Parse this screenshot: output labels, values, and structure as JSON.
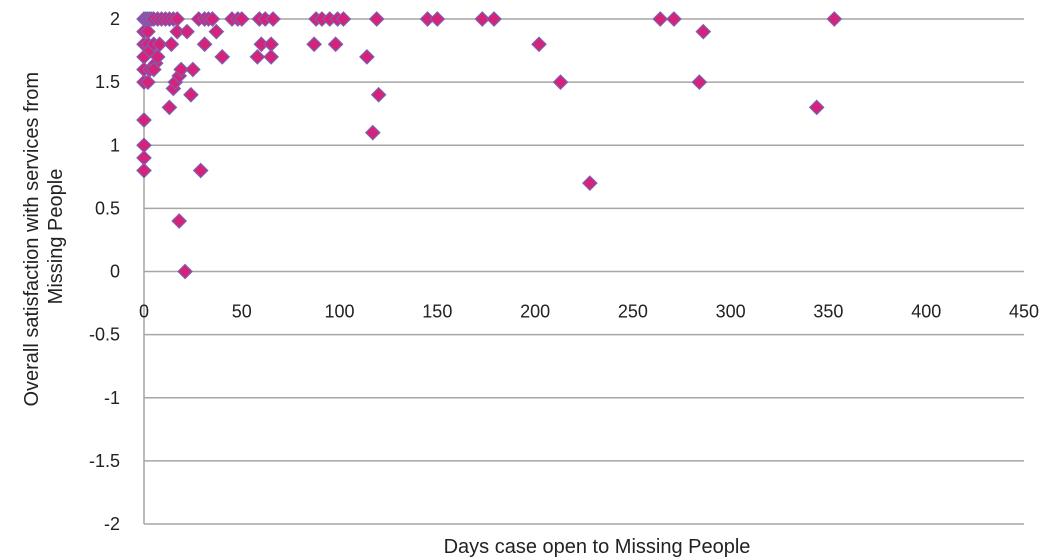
{
  "chart_data": {
    "type": "scatter",
    "title": "",
    "xlabel": "Days case open to Missing People",
    "ylabel_lines": [
      "Overall satisfaction with services from",
      "Missing People"
    ],
    "xlim": [
      0,
      450
    ],
    "ylim": [
      -2,
      2
    ],
    "x_ticks": [
      0,
      50,
      100,
      150,
      200,
      250,
      300,
      350,
      400,
      450
    ],
    "y_ticks": [
      -2,
      -1.5,
      -1,
      -0.5,
      0,
      0.5,
      1,
      1.5,
      2
    ],
    "x_tick_labels": [
      "0",
      "50",
      "100",
      "150",
      "200",
      "250",
      "300",
      "350",
      "400",
      "450"
    ],
    "y_tick_labels": [
      "-2",
      "-1.5",
      "-1",
      "-0.5",
      "0",
      "0.5",
      "1",
      "1.5",
      "2"
    ],
    "grid": "horizontal",
    "legend": "none",
    "marker": "diamond",
    "marker_color": "#d6237a",
    "marker_edge_color": "#7b5fb3",
    "grid_color": "#a6a6a6",
    "points": [
      {
        "x": 0,
        "y": 2
      },
      {
        "x": 1,
        "y": 2
      },
      {
        "x": 2,
        "y": 2
      },
      {
        "x": 3,
        "y": 2
      },
      {
        "x": 4,
        "y": 2
      },
      {
        "x": 5,
        "y": 2
      },
      {
        "x": 7,
        "y": 2
      },
      {
        "x": 9,
        "y": 2
      },
      {
        "x": 11,
        "y": 2
      },
      {
        "x": 13,
        "y": 2
      },
      {
        "x": 15,
        "y": 2
      },
      {
        "x": 17,
        "y": 2
      },
      {
        "x": 0,
        "y": 1.9
      },
      {
        "x": 0,
        "y": 1.8
      },
      {
        "x": 0,
        "y": 1.7
      },
      {
        "x": 0,
        "y": 1.6
      },
      {
        "x": 0,
        "y": 1.5
      },
      {
        "x": 0,
        "y": 1.2
      },
      {
        "x": 0,
        "y": 1
      },
      {
        "x": 0,
        "y": 0.9
      },
      {
        "x": 0,
        "y": 0.8
      },
      {
        "x": 2,
        "y": 1.9
      },
      {
        "x": 2,
        "y": 1.8
      },
      {
        "x": 3,
        "y": 1.75
      },
      {
        "x": 3,
        "y": 1.6
      },
      {
        "x": 2,
        "y": 1.5
      },
      {
        "x": 5,
        "y": 1.8
      },
      {
        "x": 6,
        "y": 1.65
      },
      {
        "x": 5,
        "y": 1.6
      },
      {
        "x": 7,
        "y": 1.7
      },
      {
        "x": 8,
        "y": 1.8
      },
      {
        "x": 13,
        "y": 1.3
      },
      {
        "x": 14,
        "y": 1.8
      },
      {
        "x": 15,
        "y": 1.45
      },
      {
        "x": 16,
        "y": 1.5
      },
      {
        "x": 17,
        "y": 1.9
      },
      {
        "x": 18,
        "y": 1.55
      },
      {
        "x": 19,
        "y": 1.6
      },
      {
        "x": 18,
        "y": 0.4
      },
      {
        "x": 21,
        "y": 0
      },
      {
        "x": 22,
        "y": 1.9
      },
      {
        "x": 24,
        "y": 1.4
      },
      {
        "x": 25,
        "y": 1.6
      },
      {
        "x": 28,
        "y": 2
      },
      {
        "x": 29,
        "y": 0.8
      },
      {
        "x": 31,
        "y": 2
      },
      {
        "x": 31,
        "y": 1.8
      },
      {
        "x": 33,
        "y": 2
      },
      {
        "x": 35,
        "y": 2
      },
      {
        "x": 37,
        "y": 1.9
      },
      {
        "x": 40,
        "y": 1.7
      },
      {
        "x": 45,
        "y": 2
      },
      {
        "x": 48,
        "y": 2
      },
      {
        "x": 50,
        "y": 2
      },
      {
        "x": 58,
        "y": 1.7
      },
      {
        "x": 59,
        "y": 2
      },
      {
        "x": 60,
        "y": 1.8
      },
      {
        "x": 62,
        "y": 2
      },
      {
        "x": 65,
        "y": 1.8
      },
      {
        "x": 65,
        "y": 1.7
      },
      {
        "x": 66,
        "y": 2
      },
      {
        "x": 87,
        "y": 1.8
      },
      {
        "x": 88,
        "y": 2
      },
      {
        "x": 91,
        "y": 2
      },
      {
        "x": 95,
        "y": 2
      },
      {
        "x": 98,
        "y": 1.8
      },
      {
        "x": 99,
        "y": 2
      },
      {
        "x": 102,
        "y": 2
      },
      {
        "x": 114,
        "y": 1.7
      },
      {
        "x": 117,
        "y": 1.1
      },
      {
        "x": 119,
        "y": 2
      },
      {
        "x": 120,
        "y": 1.4
      },
      {
        "x": 145,
        "y": 2
      },
      {
        "x": 150,
        "y": 2
      },
      {
        "x": 173,
        "y": 2
      },
      {
        "x": 179,
        "y": 2
      },
      {
        "x": 202,
        "y": 1.8
      },
      {
        "x": 213,
        "y": 1.5
      },
      {
        "x": 228,
        "y": 0.7
      },
      {
        "x": 264,
        "y": 2
      },
      {
        "x": 271,
        "y": 2
      },
      {
        "x": 284,
        "y": 1.5
      },
      {
        "x": 286,
        "y": 1.9
      },
      {
        "x": 344,
        "y": 1.3
      },
      {
        "x": 353,
        "y": 2
      }
    ]
  }
}
